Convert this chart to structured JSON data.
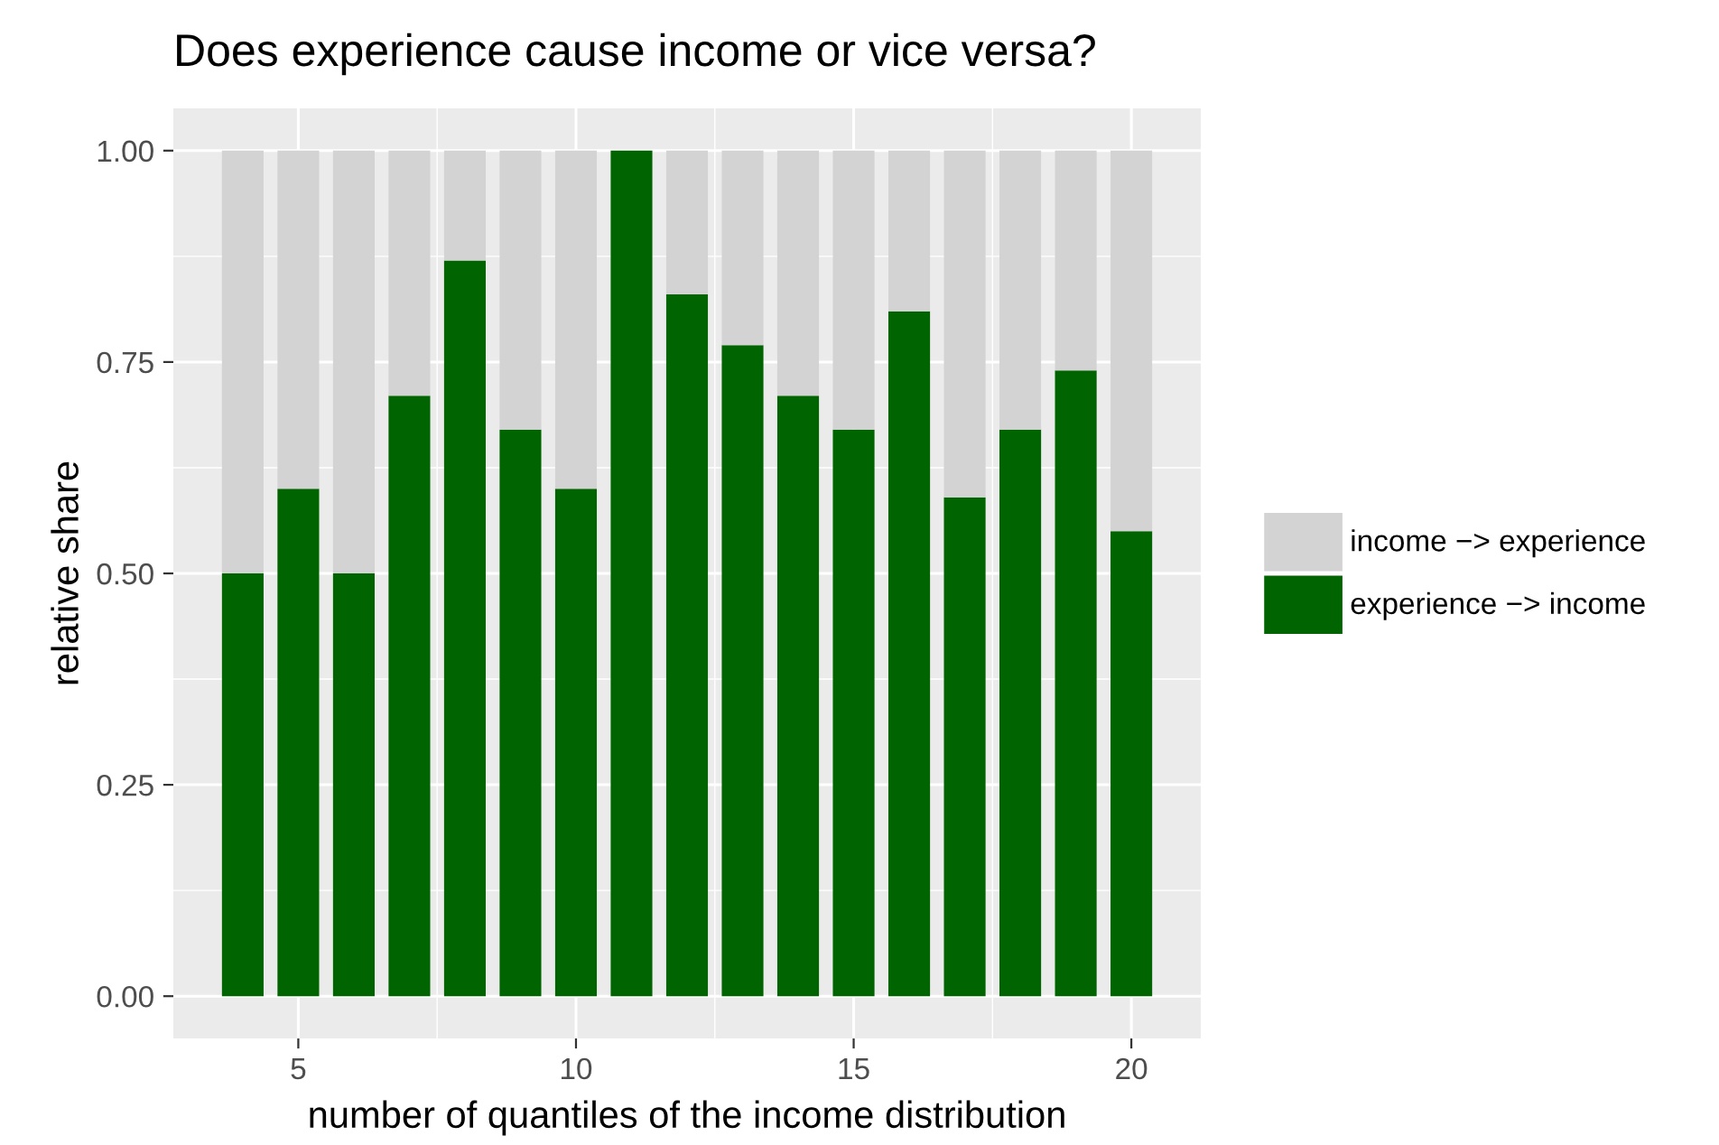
{
  "chart_data": {
    "type": "bar",
    "title": "Does experience cause income or vice versa?",
    "xlabel": "number of quantiles of the income distribution",
    "ylabel": "relative share",
    "x": [
      4,
      5,
      6,
      7,
      8,
      9,
      10,
      11,
      12,
      13,
      14,
      15,
      16,
      17,
      18,
      19,
      20
    ],
    "stacked": true,
    "series": [
      {
        "name": "experience −> income",
        "color": "#006400",
        "values": [
          0.5,
          0.6,
          0.5,
          0.71,
          0.87,
          0.67,
          0.6,
          1.0,
          0.83,
          0.77,
          0.71,
          0.67,
          0.81,
          0.59,
          0.67,
          0.74,
          0.55
        ]
      },
      {
        "name": "income −> experience",
        "color": "#d3d3d3",
        "values": [
          0.5,
          0.4,
          0.5,
          0.29,
          0.13,
          0.33,
          0.4,
          0.0,
          0.17,
          0.23,
          0.29,
          0.33,
          0.19,
          0.41,
          0.33,
          0.26,
          0.45
        ]
      }
    ],
    "xlim": [
      2.75,
      21.25
    ],
    "xticks": [
      5,
      10,
      15,
      20
    ],
    "ylim": [
      -0.05,
      1.05
    ],
    "yticks": [
      {
        "value": 0,
        "label": "0.00"
      },
      {
        "value": 0.25,
        "label": "0.25"
      },
      {
        "value": 0.5,
        "label": "0.50"
      },
      {
        "value": 0.75,
        "label": "0.75"
      },
      {
        "value": 1,
        "label": "1.00"
      }
    ],
    "grid": true,
    "legend": "right"
  }
}
